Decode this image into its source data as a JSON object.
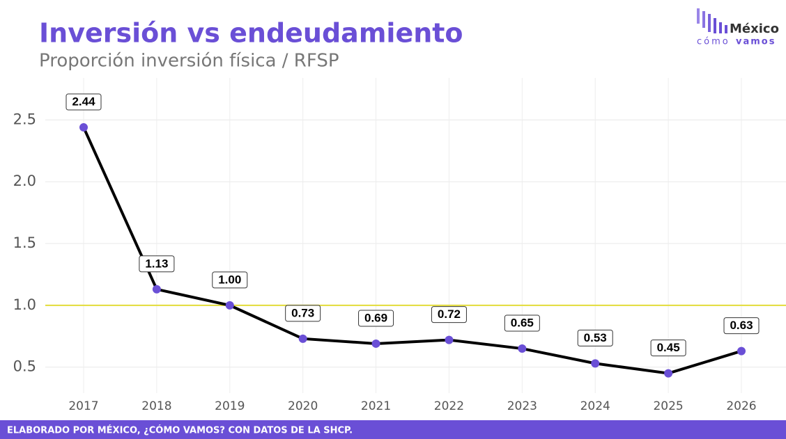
{
  "chart_data": {
    "type": "line",
    "title": "Inversión vs endeudamiento",
    "subtitle": "Proporción inversión física / RFSP",
    "categories": [
      "2017",
      "2018",
      "2019",
      "2020",
      "2021",
      "2022",
      "2023",
      "2024",
      "2025",
      "2026"
    ],
    "values": [
      2.44,
      1.13,
      1.0,
      0.73,
      0.69,
      0.72,
      0.65,
      0.53,
      0.45,
      0.63
    ],
    "value_labels": [
      "2.44",
      "1.13",
      "1.00",
      "0.73",
      "0.69",
      "0.72",
      "0.65",
      "0.53",
      "0.45",
      "0.63"
    ],
    "color": "#000000",
    "marker_color": "#6a4fd6",
    "ylim": [
      0.29,
      2.84
    ],
    "yticks": [
      0.5,
      {
        "value": 1,
        "label": "1.0"
      },
      1.5,
      {
        "value": 2,
        "label": "2.0"
      },
      2.5
    ],
    "grid": true,
    "hline": 1,
    "hline_color": "#e3dc3a"
  },
  "logo": {
    "name": "México",
    "line1": "cómo",
    "line2": "vamos"
  },
  "footer": "ELABORADO POR MÉXICO, ¿CÓMO VAMOS? CON DATOS DE LA SHCP."
}
